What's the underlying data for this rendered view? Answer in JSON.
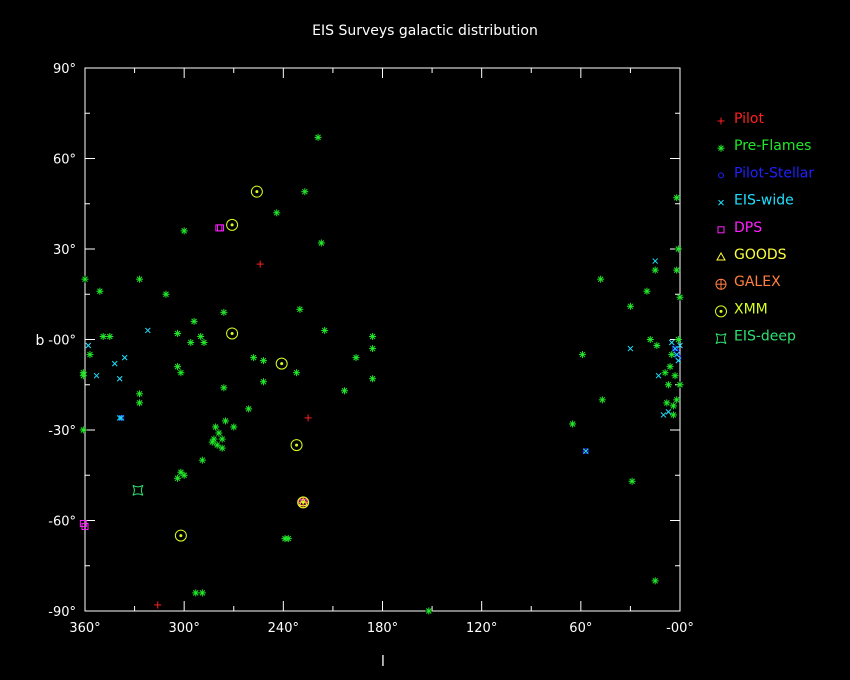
{
  "chart_data": {
    "type": "scatter",
    "title": "EIS Surveys galactic distribution",
    "xlabel": "l",
    "ylabel": "b",
    "xlim": [
      360,
      0
    ],
    "ylim": [
      -90,
      90
    ],
    "x_ticks": [
      "360°",
      "300°",
      "240°",
      "180°",
      "120°",
      "60°",
      "-00°"
    ],
    "x_tick_values": [
      360,
      300,
      240,
      180,
      120,
      60,
      0
    ],
    "y_ticks": [
      "90°",
      "60°",
      "30°",
      "-00°",
      "-30°",
      "-60°",
      "-90°"
    ],
    "y_tick_values": [
      90,
      60,
      30,
      0,
      -30,
      -60,
      -90
    ],
    "legend_position": "right",
    "series": [
      {
        "name": "Pilot",
        "marker": "plus",
        "color": "#ff2020",
        "points": [
          [
            254,
            25
          ],
          [
            225,
            -26
          ],
          [
            316,
            -88
          ]
        ]
      },
      {
        "name": "Pre-Flames",
        "marker": "asterisk",
        "color": "#22e82a",
        "points": [
          [
            219,
            67
          ],
          [
            227,
            49
          ],
          [
            244,
            42
          ],
          [
            217,
            32
          ],
          [
            300,
            36
          ],
          [
            360,
            20
          ],
          [
            327,
            20
          ],
          [
            351,
            16
          ],
          [
            311,
            15
          ],
          [
            276,
            9
          ],
          [
            294,
            6
          ],
          [
            230,
            10
          ],
          [
            215,
            3
          ],
          [
            186,
            1
          ],
          [
            304,
            2
          ],
          [
            345,
            1
          ],
          [
            349,
            1
          ],
          [
            290,
            1
          ],
          [
            288,
            -1
          ],
          [
            296,
            -1
          ],
          [
            357,
            -5
          ],
          [
            252,
            -7
          ],
          [
            258,
            -6
          ],
          [
            196,
            -6
          ],
          [
            186,
            -3
          ],
          [
            304,
            -9
          ],
          [
            302,
            -11
          ],
          [
            361,
            -11
          ],
          [
            361,
            -12
          ],
          [
            232,
            -11
          ],
          [
            276,
            -16
          ],
          [
            252,
            -14
          ],
          [
            186,
            -13
          ],
          [
            203,
            -17
          ],
          [
            327,
            -18
          ],
          [
            327,
            -21
          ],
          [
            261,
            -23
          ],
          [
            275,
            -27
          ],
          [
            270,
            -29
          ],
          [
            281,
            -29
          ],
          [
            361,
            -30
          ],
          [
            279,
            -31
          ],
          [
            282,
            -33
          ],
          [
            277,
            -33
          ],
          [
            280,
            -35
          ],
          [
            283,
            -34
          ],
          [
            277,
            -36
          ],
          [
            289,
            -40
          ],
          [
            302,
            -44
          ],
          [
            304,
            -46
          ],
          [
            300,
            -45
          ],
          [
            239,
            -66
          ],
          [
            237,
            -66
          ],
          [
            293,
            -84
          ],
          [
            289,
            -84
          ],
          [
            152,
            -90
          ],
          [
            59,
            -5
          ],
          [
            48,
            20
          ],
          [
            47,
            -20
          ],
          [
            65,
            -28
          ],
          [
            30,
            11
          ],
          [
            20,
            16
          ],
          [
            18,
            0
          ],
          [
            15,
            23
          ],
          [
            14,
            -2
          ],
          [
            9,
            -11
          ],
          [
            8,
            -21
          ],
          [
            7,
            -15
          ],
          [
            6,
            -9
          ],
          [
            5,
            -5
          ],
          [
            4,
            -22
          ],
          [
            4,
            -25
          ],
          [
            3,
            -12
          ],
          [
            2,
            47
          ],
          [
            2,
            23
          ],
          [
            2,
            -20
          ],
          [
            1,
            0
          ],
          [
            1,
            30
          ],
          [
            0,
            14
          ],
          [
            0,
            -15
          ],
          [
            15,
            -80
          ],
          [
            29,
            -47
          ]
        ]
      },
      {
        "name": "Pilot-Stellar",
        "marker": "circle",
        "color": "#2020ff",
        "points": [
          [
            338,
            -26
          ],
          [
            57,
            -37
          ],
          [
            3,
            -3
          ],
          [
            2,
            -4
          ],
          [
            1,
            -6
          ]
        ]
      },
      {
        "name": "EIS-wide",
        "marker": "cross",
        "color": "#20e0ff",
        "points": [
          [
            338,
            -26
          ],
          [
            339,
            -26
          ],
          [
            358,
            -2
          ],
          [
            339,
            -13
          ],
          [
            342,
            -8
          ],
          [
            336,
            -6
          ],
          [
            353,
            -12
          ],
          [
            322,
            3
          ],
          [
            57,
            -37
          ],
          [
            30,
            -3
          ],
          [
            15,
            26
          ],
          [
            13,
            -12
          ],
          [
            10,
            -25
          ],
          [
            7,
            -24
          ],
          [
            5,
            -1
          ],
          [
            3,
            -3
          ],
          [
            2,
            -5
          ],
          [
            1,
            -7
          ],
          [
            0,
            -2
          ]
        ]
      },
      {
        "name": "DPS",
        "marker": "square",
        "color": "#ff20ff",
        "points": [
          [
            279,
            37
          ],
          [
            278,
            37
          ],
          [
            361,
            -61
          ],
          [
            360,
            -62
          ],
          [
            228,
            -54
          ]
        ]
      },
      {
        "name": "GOODS",
        "marker": "triangle",
        "color": "#ffff40",
        "points": [
          [
            228,
            -54
          ]
        ]
      },
      {
        "name": "GALEX",
        "marker": "circled-plus",
        "color": "#ff8040",
        "points": [
          [
            228,
            -54
          ]
        ]
      },
      {
        "name": "XMM",
        "marker": "circled-dot",
        "color": "#d8ff20",
        "points": [
          [
            256,
            49
          ],
          [
            271,
            38
          ],
          [
            271,
            2
          ],
          [
            241,
            -8
          ],
          [
            232,
            -35
          ],
          [
            302,
            -65
          ],
          [
            228,
            -54
          ]
        ]
      },
      {
        "name": "EIS-deep",
        "marker": "concave-square",
        "color": "#30e070",
        "points": [
          [
            328,
            -50
          ]
        ]
      }
    ]
  }
}
